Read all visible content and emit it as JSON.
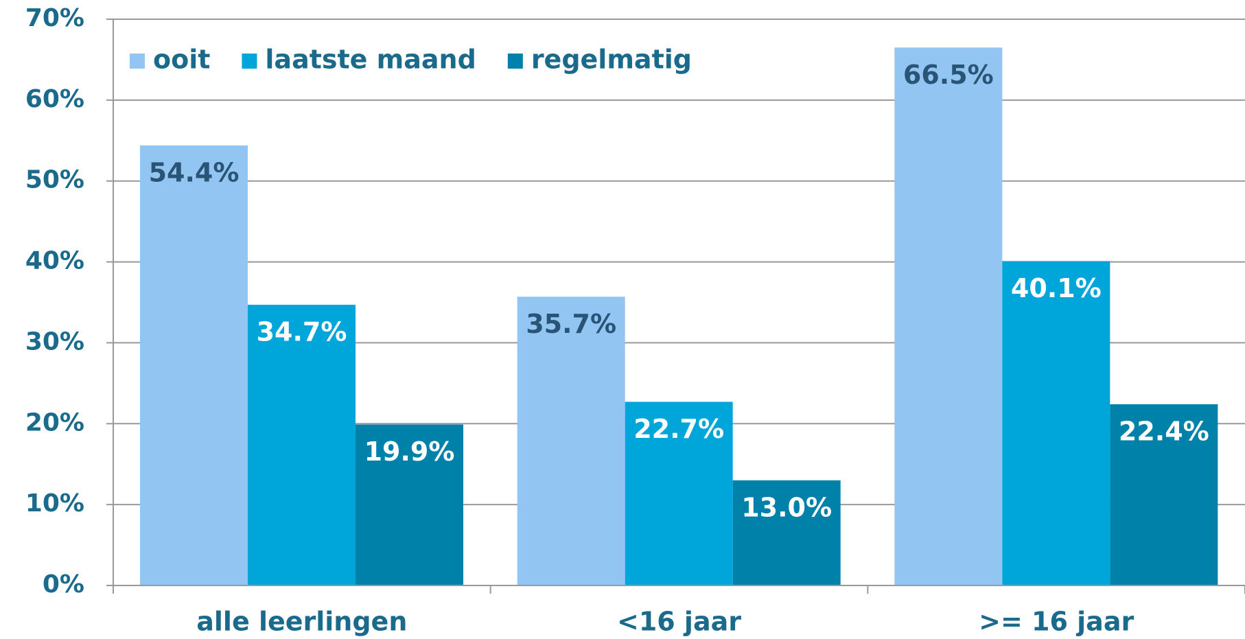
{
  "chart_data": {
    "type": "bar",
    "categories": [
      "alle leerlingen",
      "<16 jaar",
      ">= 16 jaar"
    ],
    "series": [
      {
        "name": "ooit",
        "color": "#93c5f3",
        "label_color": "#2a5475",
        "values": [
          54.4,
          35.7,
          66.5
        ],
        "value_labels": [
          "54.4%",
          "35.7%",
          "66.5%"
        ]
      },
      {
        "name": "laatste maand",
        "color": "#00a6d9",
        "label_color": "#ffffff",
        "values": [
          34.7,
          22.7,
          40.1
        ],
        "value_labels": [
          "34.7%",
          "22.7%",
          "40.1%"
        ]
      },
      {
        "name": "regelmatig",
        "color": "#0081aa",
        "label_color": "#ffffff",
        "values": [
          19.9,
          13.0,
          22.4
        ],
        "value_labels": [
          "19.9%",
          "13.0%",
          "22.4%"
        ]
      }
    ],
    "ylim": [
      0,
      70
    ],
    "yticks": [
      {
        "value": 0,
        "label": "0%"
      },
      {
        "value": 10,
        "label": "10%"
      },
      {
        "value": 20,
        "label": "20%"
      },
      {
        "value": 30,
        "label": "30%"
      },
      {
        "value": 40,
        "label": "40%"
      },
      {
        "value": 50,
        "label": "50%"
      },
      {
        "value": 60,
        "label": "60%"
      },
      {
        "value": 70,
        "label": "70%"
      }
    ],
    "grid": true,
    "legend": "top-left"
  }
}
